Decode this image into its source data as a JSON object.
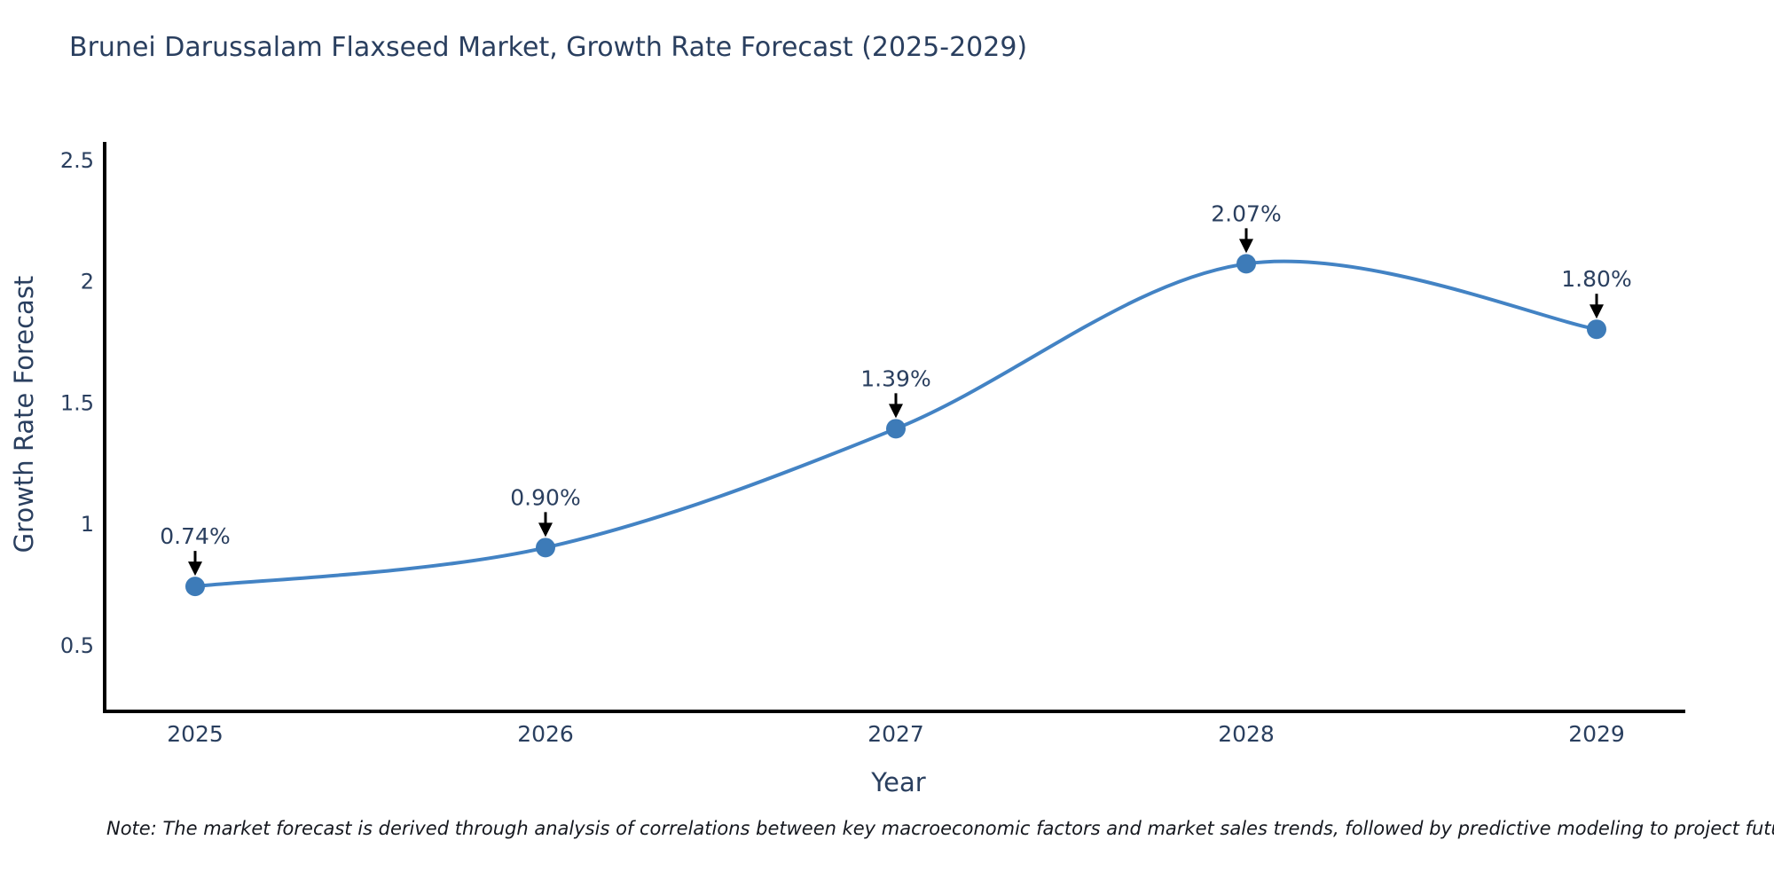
{
  "title": "Brunei Darussalam Flaxseed Market, Growth Rate Forecast (2025-2029)",
  "note": "Note: The market forecast is derived through analysis of correlations between key macroeconomic factors and market sales trends, followed by predictive modeling to project future sales",
  "chart_data": {
    "type": "line",
    "title": "Brunei Darussalam Flaxseed Market, Growth Rate Forecast (2025-2029)",
    "xlabel": "Year",
    "ylabel": "Growth Rate Forecast",
    "categories": [
      "2025",
      "2026",
      "2027",
      "2028",
      "2029"
    ],
    "series": [
      {
        "name": "Growth Rate Forecast",
        "values": [
          0.74,
          0.9,
          1.39,
          2.07,
          1.8
        ]
      }
    ],
    "point_labels": [
      "0.74%",
      "0.90%",
      "1.39%",
      "2.07%",
      "1.80%"
    ],
    "yticks": [
      0.5,
      1,
      1.5,
      2,
      2.5
    ],
    "ylim": [
      0.22,
      2.57
    ],
    "grid": false,
    "legend": "none",
    "line_shape": "spline",
    "colors": {
      "line": "#4383c4",
      "marker": "#3d7bb8",
      "axis": "#000000",
      "tick_text": "#2a3f5f",
      "annotation_text": "#2a3f5f",
      "arrow": "#000000",
      "background": "#ffffff"
    }
  }
}
